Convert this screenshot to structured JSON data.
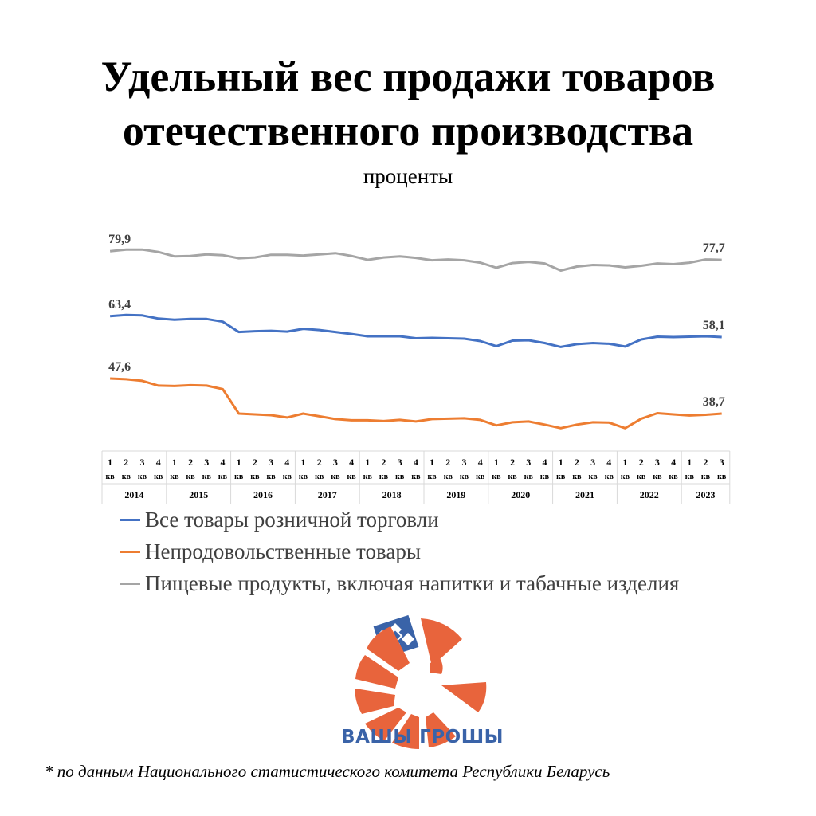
{
  "header": {
    "title_line1": "Удельный вес продажи товаров",
    "title_line2": "отечественного производства",
    "subtitle": "проценты"
  },
  "chart_data": {
    "type": "line",
    "title": "Удельный вес продажи товаров отечественного производства",
    "ylabel": "проценты",
    "grid": false,
    "legend_position": "bottom",
    "ylim": [
      30,
      85
    ],
    "x_quarters": [
      "1 кв",
      "2 кв",
      "3 кв",
      "4 кв",
      "1 кв",
      "2 кв",
      "3 кв",
      "4 кв",
      "1 кв",
      "2 кв",
      "3 кв",
      "4 кв",
      "1 кв",
      "2 кв",
      "3 кв",
      "4 кв",
      "1 кв",
      "2 кв",
      "3 кв",
      "4 кв",
      "1 кв",
      "2 кв",
      "3 кв",
      "4 кв",
      "1 кв",
      "2 кв",
      "3 кв",
      "4 кв",
      "1 кв",
      "2 кв",
      "3 кв",
      "4 кв",
      "1 кв",
      "2 кв",
      "3 кв",
      "4 кв",
      "1 кв",
      "2 кв",
      "3 кв"
    ],
    "years": [
      {
        "label": "2014",
        "span": 4
      },
      {
        "label": "2015",
        "span": 4
      },
      {
        "label": "2016",
        "span": 4
      },
      {
        "label": "2017",
        "span": 4
      },
      {
        "label": "2018",
        "span": 4
      },
      {
        "label": "2019",
        "span": 4
      },
      {
        "label": "2020",
        "span": 4
      },
      {
        "label": "2021",
        "span": 4
      },
      {
        "label": "2022",
        "span": 4
      },
      {
        "label": "2023",
        "span": 3
      }
    ],
    "series": [
      {
        "name": "Все товары розничной торговли",
        "color": "#4472c4",
        "first_label": "63,4",
        "last_label": "58,1",
        "values": [
          63.4,
          63.7,
          63.6,
          62.8,
          62.5,
          62.7,
          62.7,
          62.0,
          59.4,
          59.6,
          59.7,
          59.5,
          60.2,
          59.9,
          59.4,
          58.9,
          58.3,
          58.3,
          58.3,
          57.8,
          57.9,
          57.8,
          57.7,
          57.1,
          55.8,
          57.2,
          57.3,
          56.6,
          55.6,
          56.3,
          56.6,
          56.4,
          55.7,
          57.5,
          58.2,
          58.1,
          58.2,
          58.3,
          58.1
        ]
      },
      {
        "name": "Непродовольственные товары",
        "color": "#ed7d31",
        "first_label": "47,6",
        "last_label": "38,7",
        "values": [
          47.6,
          47.4,
          47.0,
          45.8,
          45.7,
          45.9,
          45.8,
          44.9,
          38.7,
          38.5,
          38.3,
          37.7,
          38.7,
          38.0,
          37.3,
          37.0,
          37.0,
          36.8,
          37.1,
          36.7,
          37.3,
          37.4,
          37.5,
          37.1,
          35.7,
          36.5,
          36.7,
          35.9,
          35.0,
          35.9,
          36.5,
          36.4,
          35.0,
          37.4,
          38.8,
          38.5,
          38.2,
          38.4,
          38.7
        ]
      },
      {
        "name": "Пищевые продукты, включая напитки и табачные изделия",
        "color": "#a5a5a5",
        "first_label": "79,9",
        "last_label": "77,7",
        "values": [
          79.9,
          80.3,
          80.3,
          79.7,
          78.6,
          78.7,
          79.1,
          78.9,
          78.1,
          78.3,
          79.0,
          79.0,
          78.8,
          79.1,
          79.4,
          78.7,
          77.7,
          78.3,
          78.6,
          78.2,
          77.6,
          77.8,
          77.6,
          77.0,
          75.7,
          76.9,
          77.2,
          76.8,
          75.0,
          76.0,
          76.4,
          76.3,
          75.8,
          76.2,
          76.8,
          76.6,
          77.0,
          77.8,
          77.7
        ]
      }
    ]
  },
  "legend": {
    "items": [
      {
        "label": "Все товары розничной торговли",
        "color": "#4472c4"
      },
      {
        "label": "Непродовольственные товары",
        "color": "#ed7d31"
      },
      {
        "label": "Пищевые продукты, включая напитки и табачные изделия",
        "color": "#a5a5a5"
      }
    ]
  },
  "logo": {
    "text": "ВАШЫ ГРОШЫ",
    "colors": {
      "orange": "#e8643c",
      "blue": "#3a63a8"
    }
  },
  "footnote": "* по данным Национального статистического комитета Республики Беларусь"
}
